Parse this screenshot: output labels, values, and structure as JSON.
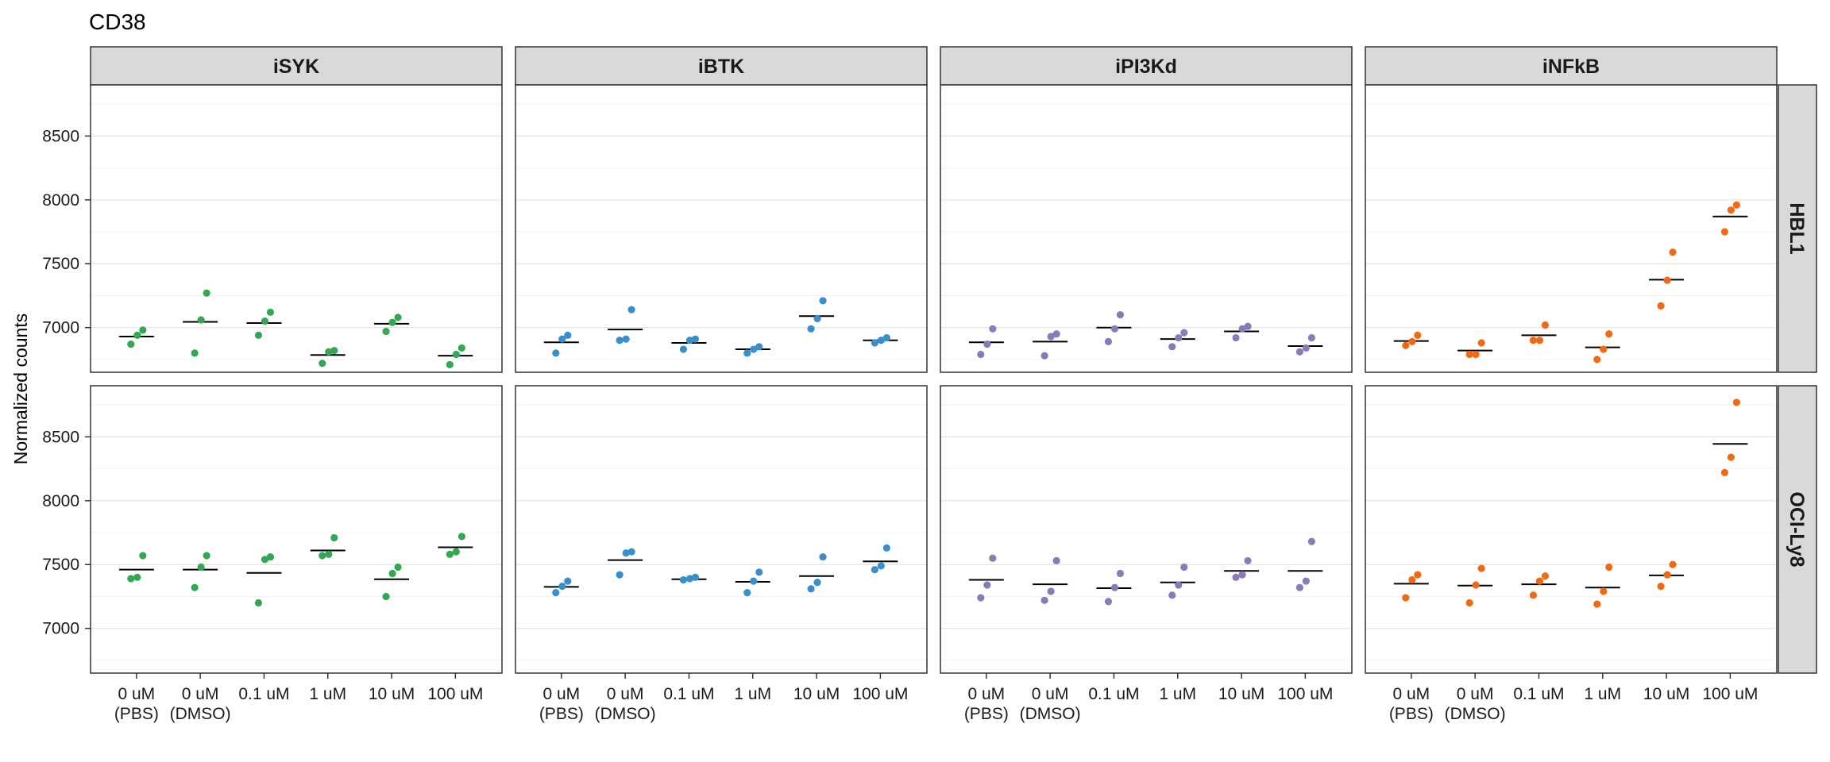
{
  "chart_data": {
    "type": "scatter",
    "title": "CD38",
    "ylabel": "Normalized counts",
    "xlabel": "",
    "categories": [
      [
        "0 uM",
        "(PBS)"
      ],
      [
        "0 uM",
        "(DMSO)"
      ],
      [
        "0.1 uM"
      ],
      [
        "1 uM"
      ],
      [
        "10 uM"
      ],
      [
        "100 uM"
      ]
    ],
    "facet_cols": [
      "iSYK",
      "iBTK",
      "iPI3Kd",
      "iNFkB"
    ],
    "facet_rows": [
      "HBL1",
      "OCI-Ly8"
    ],
    "colors": {
      "iSYK": "#33a852",
      "iBTK": "#3a8fcb",
      "iPI3Kd": "#8a7ab8",
      "iNFkB": "#f06a13"
    },
    "grid": true,
    "mean_line": true,
    "panels": [
      {
        "row": "HBL1",
        "ylim": [
          6650,
          8900
        ],
        "yticks": [
          7000,
          7500,
          8000,
          8500
        ],
        "facets": {
          "iSYK": [
            [
              6870,
              6940,
              6980
            ],
            [
              6800,
              7060,
              7270
            ],
            [
              6940,
              7050,
              7120
            ],
            [
              6720,
              6810,
              6820
            ],
            [
              6970,
              7040,
              7080
            ],
            [
              6710,
              6790,
              6840
            ]
          ],
          "iBTK": [
            [
              6800,
              6910,
              6940
            ],
            [
              6900,
              6910,
              7140
            ],
            [
              6830,
              6900,
              6910
            ],
            [
              6800,
              6830,
              6850
            ],
            [
              6990,
              7070,
              7210
            ],
            [
              6880,
              6900,
              6920
            ]
          ],
          "iPI3Kd": [
            [
              6790,
              6870,
              6990
            ],
            [
              6780,
              6930,
              6950
            ],
            [
              6890,
              6990,
              7100
            ],
            [
              6850,
              6920,
              6960
            ],
            [
              6920,
              6990,
              7010
            ],
            [
              6810,
              6840,
              6920
            ]
          ],
          "iNFkB": [
            [
              6860,
              6890,
              6940
            ],
            [
              6790,
              6790,
              6880
            ],
            [
              6900,
              6900,
              7020
            ],
            [
              6750,
              6830,
              6950
            ],
            [
              7170,
              7370,
              7590
            ],
            [
              7750,
              7920,
              7960
            ]
          ]
        },
        "means": {
          "iSYK": [
            6930,
            7045,
            7035,
            6785,
            7030,
            6780
          ],
          "iBTK": [
            6885,
            6985,
            6880,
            6830,
            7090,
            6900
          ],
          "iPI3Kd": [
            6885,
            6890,
            7000,
            6910,
            6970,
            6855
          ],
          "iNFkB": [
            6895,
            6820,
            6940,
            6845,
            7375,
            7870
          ]
        }
      },
      {
        "row": "OCI-Ly8",
        "ylim": [
          6650,
          8900
        ],
        "yticks": [
          7000,
          7500,
          8000,
          8500
        ],
        "facets": {
          "iSYK": [
            [
              7390,
              7400,
              7570
            ],
            [
              7320,
              7480,
              7570
            ],
            [
              7200,
              7540,
              7560
            ],
            [
              7570,
              7580,
              7710
            ],
            [
              7250,
              7430,
              7480
            ],
            [
              7580,
              7600,
              7720
            ]
          ],
          "iBTK": [
            [
              7280,
              7330,
              7370
            ],
            [
              7420,
              7590,
              7600
            ],
            [
              7380,
              7390,
              7400
            ],
            [
              7280,
              7370,
              7440
            ],
            [
              7310,
              7360,
              7560
            ],
            [
              7460,
              7490,
              7630
            ]
          ],
          "iPI3Kd": [
            [
              7240,
              7340,
              7550
            ],
            [
              7220,
              7290,
              7530
            ],
            [
              7210,
              7320,
              7430
            ],
            [
              7260,
              7340,
              7480
            ],
            [
              7400,
              7420,
              7530
            ],
            [
              7320,
              7370,
              7680
            ]
          ],
          "iNFkB": [
            [
              7240,
              7380,
              7420
            ],
            [
              7200,
              7340,
              7470
            ],
            [
              7260,
              7370,
              7410
            ],
            [
              7190,
              7290,
              7480
            ],
            [
              7330,
              7420,
              7500
            ],
            [
              8220,
              8340,
              8770
            ]
          ]
        },
        "means": {
          "iSYK": [
            7460,
            7460,
            7435,
            7610,
            7385,
            7635
          ],
          "iBTK": [
            7325,
            7535,
            7385,
            7365,
            7410,
            7525
          ],
          "iPI3Kd": [
            7380,
            7345,
            7315,
            7360,
            7450,
            7450
          ],
          "iNFkB": [
            7350,
            7335,
            7345,
            7320,
            7415,
            8445
          ]
        }
      }
    ]
  }
}
